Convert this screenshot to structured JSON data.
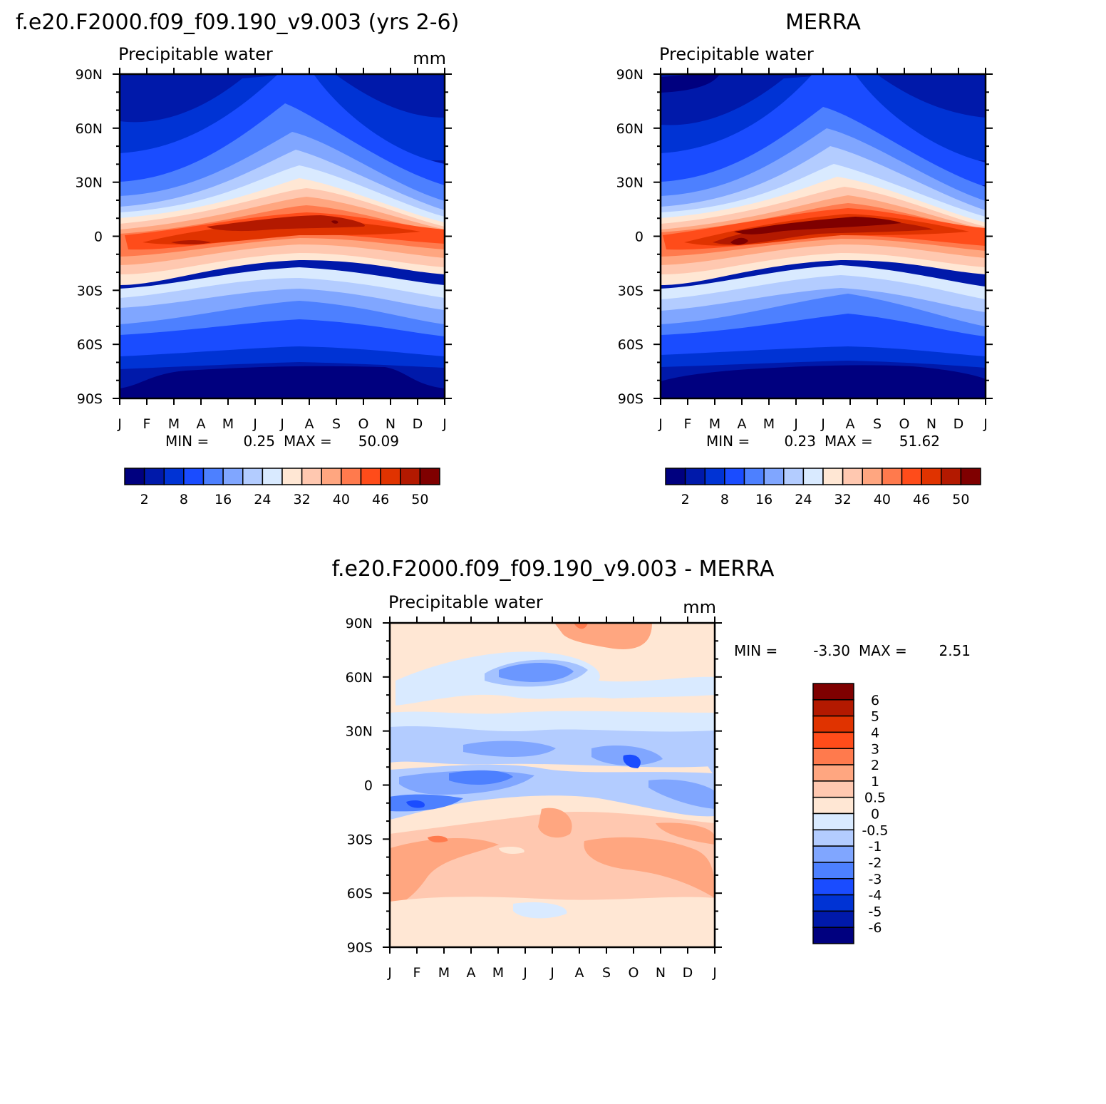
{
  "panels": {
    "model": {
      "title": "f.e20.F2000.f09_f09.190_v9.003 (yrs 2-6)",
      "subtitle": "Precipitable water",
      "units": "mm",
      "min_label": "MIN =",
      "min_value": "0.25",
      "max_label": "MAX =",
      "max_value": "50.09"
    },
    "obs": {
      "title": "MERRA",
      "subtitle": "Precipitable water",
      "units": "",
      "min_label": "MIN =",
      "min_value": "0.23",
      "max_label": "MAX =",
      "max_value": "51.62"
    },
    "diff": {
      "title": "f.e20.F2000.f09_f09.190_v9.003 - MERRA",
      "subtitle": "Precipitable water",
      "units": "mm",
      "min_label": "MIN =",
      "min_value": "-3.30",
      "max_label": "MAX =",
      "max_value": "2.51"
    }
  },
  "colors": {
    "abs_levels": [
      "#00007f",
      "#0019aa",
      "#0033d4",
      "#1a4cff",
      "#4d80ff",
      "#80a6ff",
      "#b3ccff",
      "#d9eaff",
      "#ffe7d4",
      "#ffc8b0",
      "#ffa680",
      "#ff7a4d",
      "#ff4c1a",
      "#e03300",
      "#b31900",
      "#7f0000"
    ],
    "diff_levels": [
      "#7f0000",
      "#b31900",
      "#e03300",
      "#ff4c1a",
      "#ff7a4d",
      "#ffa680",
      "#ffc8b0",
      "#ffe7d4",
      "#d9eaff",
      "#b3ccff",
      "#80a6ff",
      "#4d80ff",
      "#1a4cff",
      "#0033d4",
      "#0019aa",
      "#00007f"
    ]
  },
  "chart_data": [
    {
      "type": "heatmap",
      "title": "f.e20.F2000.f09_f09.190_v9.003 (yrs 2-6)",
      "subtitle": "Precipitable water",
      "units": "mm",
      "x": [
        "J",
        "F",
        "M",
        "A",
        "M",
        "J",
        "J",
        "A",
        "S",
        "O",
        "N",
        "D",
        "J"
      ],
      "y_ticks": [
        "90N",
        "60N",
        "30N",
        "0",
        "30S",
        "60S",
        "90S"
      ],
      "ylim": [
        -90,
        90
      ],
      "min": 0.25,
      "max": 50.09,
      "colorbar_labels": [
        "2",
        "8",
        "16",
        "24",
        "32",
        "40",
        "46",
        "50"
      ]
    },
    {
      "type": "heatmap",
      "title": "MERRA",
      "subtitle": "Precipitable water",
      "x": [
        "J",
        "F",
        "M",
        "A",
        "M",
        "J",
        "J",
        "A",
        "S",
        "O",
        "N",
        "D",
        "J"
      ],
      "y_ticks": [
        "90N",
        "60N",
        "30N",
        "0",
        "30S",
        "60S",
        "90S"
      ],
      "ylim": [
        -90,
        90
      ],
      "min": 0.23,
      "max": 51.62,
      "colorbar_labels": [
        "2",
        "8",
        "16",
        "24",
        "32",
        "40",
        "46",
        "50"
      ]
    },
    {
      "type": "heatmap",
      "title": "f.e20.F2000.f09_f09.190_v9.003 - MERRA",
      "subtitle": "Precipitable water",
      "units": "mm",
      "x": [
        "J",
        "F",
        "M",
        "A",
        "M",
        "J",
        "J",
        "A",
        "S",
        "O",
        "N",
        "D",
        "J"
      ],
      "y_ticks": [
        "90N",
        "60N",
        "30N",
        "0",
        "30S",
        "60S",
        "90S"
      ],
      "ylim": [
        -90,
        90
      ],
      "min": -3.3,
      "max": 2.51,
      "colorbar_labels": [
        "6",
        "5",
        "4",
        "3",
        "2",
        "1",
        "0.5",
        "0",
        "-0.5",
        "-1",
        "-2",
        "-3",
        "-4",
        "-5",
        "-6"
      ]
    }
  ]
}
